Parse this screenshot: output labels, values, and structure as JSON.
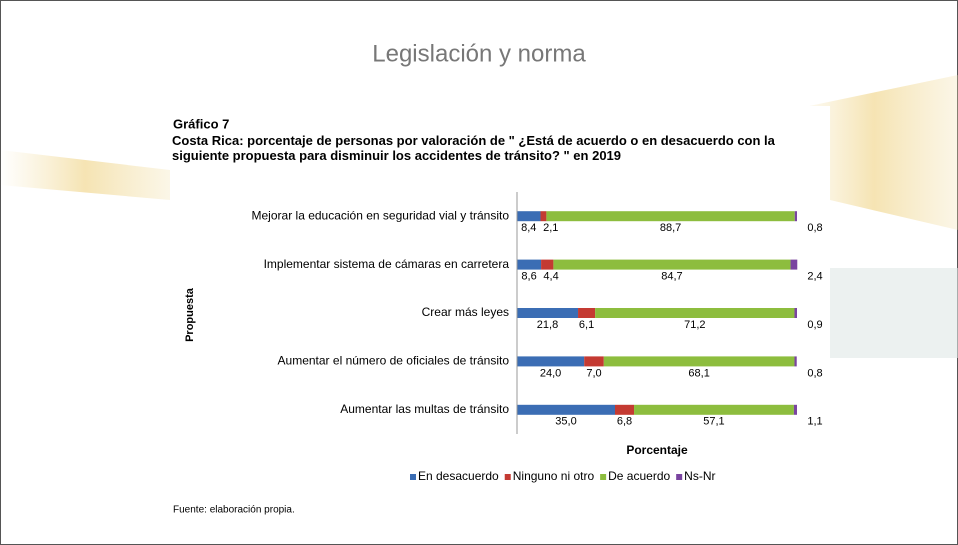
{
  "slide_title": "Legislación y norma",
  "chart_data": {
    "type": "stacked-barh",
    "title": "Gráfico 7",
    "subtitle": "Costa Rica: porcentaje de personas por valoración de \" ¿Está de acuerdo o en desacuerdo con la siguiente propuesta para disminuir los accidentes de tránsito? \" en 2019",
    "xlabel": "Porcentaje",
    "ylabel": "Propuesta",
    "source": "Fuente: elaboración propia.",
    "xlim": [
      0,
      100
    ],
    "categories": [
      "Mejorar la educación en seguridad vial y tránsito",
      "Implementar sistema de cámaras en carretera",
      "Crear más leyes",
      "Aumentar el número de oficiales de tránsito",
      "Aumentar las multas de tránsito"
    ],
    "series": [
      {
        "name": "En desacuerdo",
        "color": "#3b6db4",
        "values": [
          8.4,
          8.6,
          21.8,
          24.0,
          35.0
        ],
        "value_labels": [
          "8,4",
          "8,6",
          "21,8",
          "24,0",
          "35,0"
        ]
      },
      {
        "name": "Ninguno ni otro",
        "color": "#c43a32",
        "values": [
          2.1,
          4.4,
          6.1,
          7.0,
          6.8
        ],
        "value_labels": [
          "2,1",
          "4,4",
          "6,1",
          "7,0",
          "6,8"
        ]
      },
      {
        "name": "De acuerdo",
        "color": "#8dbd3e",
        "values": [
          88.7,
          84.7,
          71.2,
          68.1,
          57.1
        ],
        "value_labels": [
          "88,7",
          "84,7",
          "71,2",
          "68,1",
          "57,1"
        ]
      },
      {
        "name": "Ns-Nr",
        "color": "#7a44a0",
        "values": [
          0.8,
          2.4,
          0.9,
          0.8,
          1.1
        ],
        "value_labels": [
          "0,8",
          "2,4",
          "0,9",
          "0,8",
          "1,1"
        ]
      }
    ],
    "legend": "bottom"
  }
}
